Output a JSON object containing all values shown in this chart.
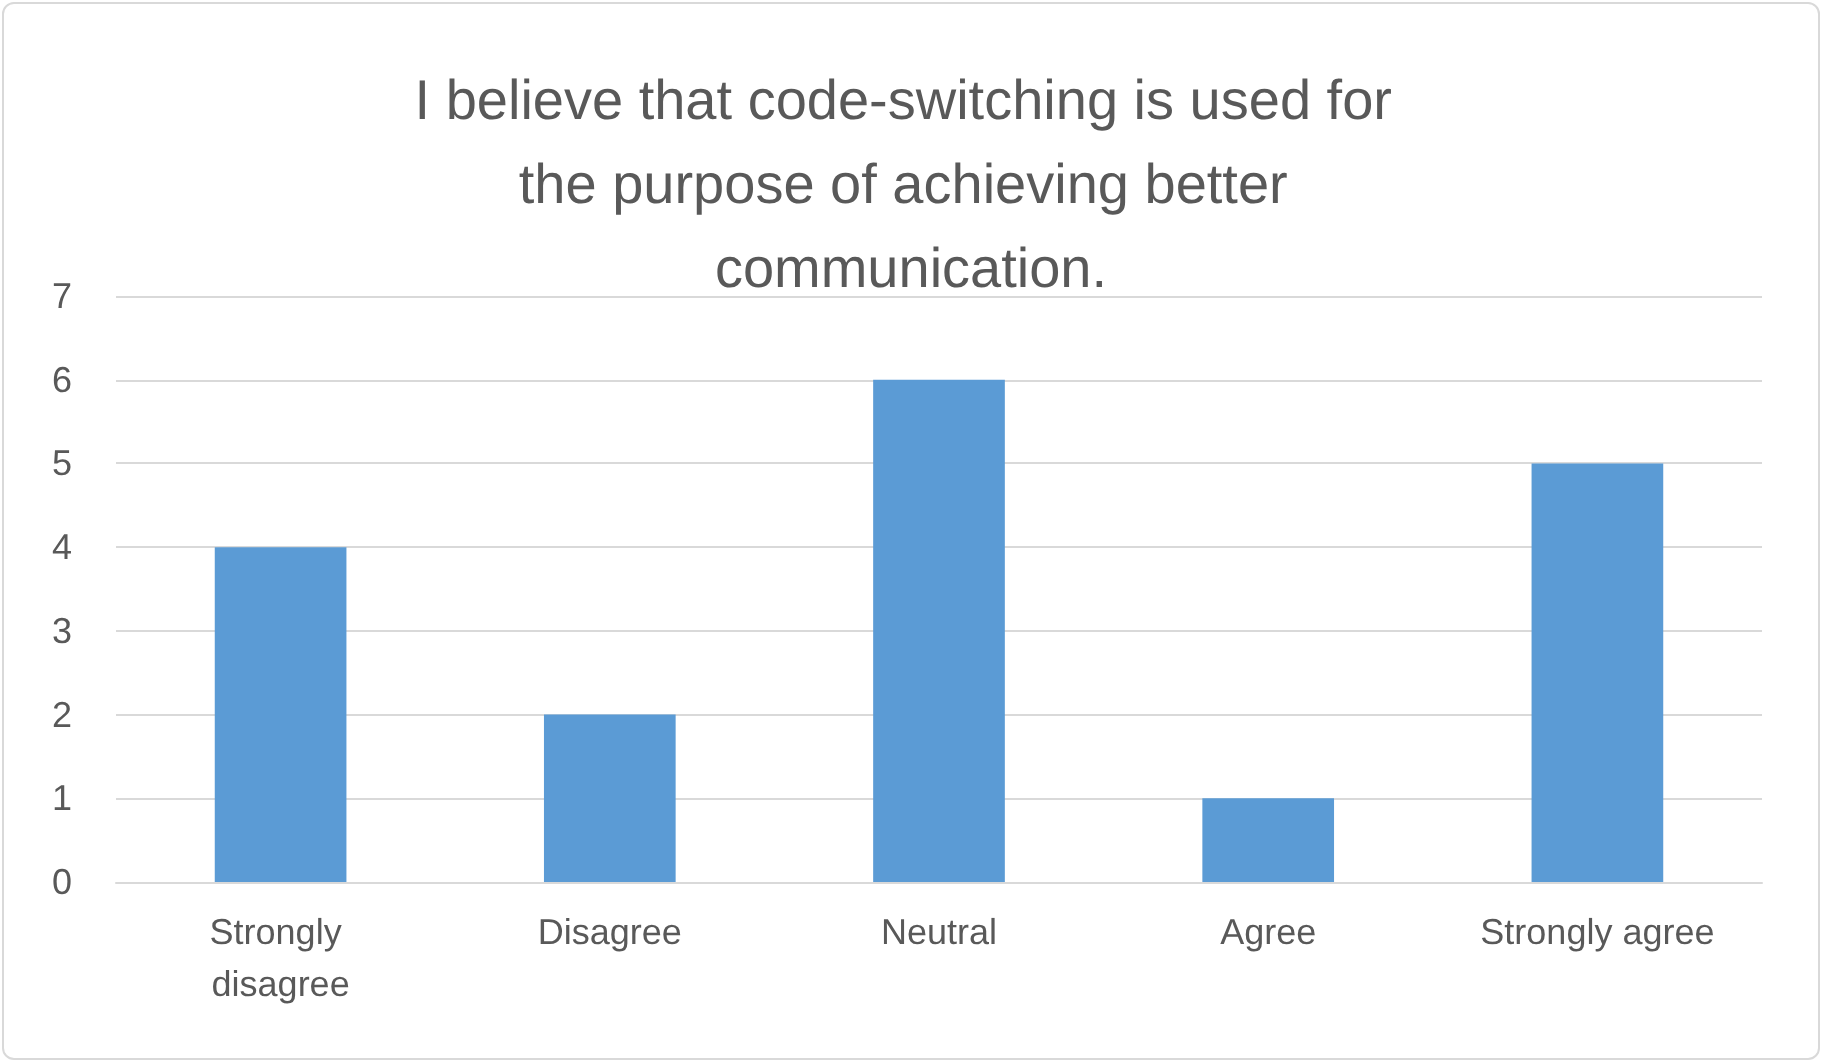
{
  "chart_data": {
    "type": "bar",
    "title": "I believe that code-switching is used for the purpose of achieving better communication.",
    "categories": [
      "Strongly disagree",
      "Disagree",
      "Neutral",
      "Agree",
      "Strongly agree"
    ],
    "values": [
      4,
      2,
      6,
      1,
      5
    ],
    "color": "#5b9bd5",
    "ylim": [
      0,
      7
    ],
    "yticks": [
      0,
      1,
      2,
      3,
      4,
      5,
      6,
      7
    ],
    "grid": "y"
  }
}
